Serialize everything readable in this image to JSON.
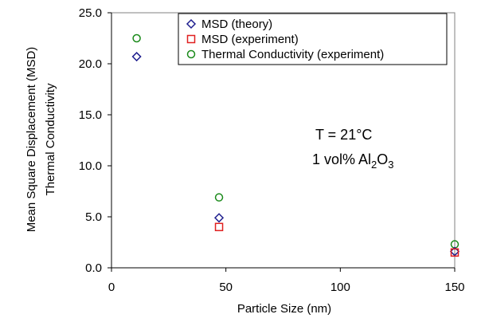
{
  "chart_data": {
    "type": "scatter",
    "xlabel": "Particle Size (nm)",
    "ylabel": [
      "Mean Square Displacement (MSD)",
      "Thermal Conductivity"
    ],
    "xlim": [
      0,
      150
    ],
    "ylim": [
      0,
      25
    ],
    "x_ticks": [
      "0",
      "50",
      "100",
      "150"
    ],
    "y_ticks": [
      "0.0",
      "5.0",
      "10.0",
      "15.0",
      "20.0",
      "25.0"
    ],
    "grid": false,
    "legend_position": "top-right",
    "series": [
      {
        "name": "MSD (theory)",
        "marker": "diamond",
        "color": "#1f1f8f",
        "points": [
          [
            11,
            20.7
          ],
          [
            47,
            4.9
          ],
          [
            150,
            1.6
          ]
        ]
      },
      {
        "name": "MSD (experiment)",
        "marker": "square",
        "color": "#e02020",
        "points": [
          [
            47,
            4.0
          ],
          [
            150,
            1.5
          ]
        ]
      },
      {
        "name": "Thermal Conductivity (experiment)",
        "marker": "circle",
        "color": "#1a8a1a",
        "points": [
          [
            11,
            22.5
          ],
          [
            47,
            6.9
          ],
          [
            150,
            2.3
          ]
        ]
      }
    ],
    "annotations": {
      "line1": "T = 21°C",
      "line2_prefix": "1 vol% Al",
      "line2_sub1": "2",
      "line2_mid": "O",
      "line2_sub2": "3"
    }
  }
}
